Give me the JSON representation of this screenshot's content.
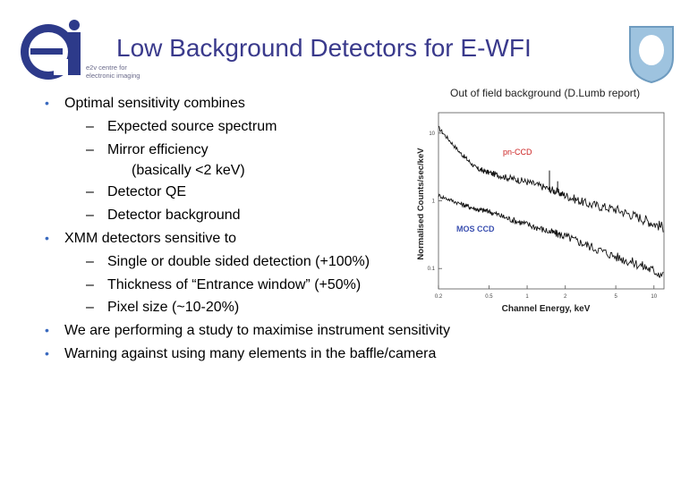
{
  "title": "Low Background Detectors for E-WFI",
  "logo": {
    "mark": "ei",
    "text_line1": "e2v centre for",
    "text_line2": "electronic imaging"
  },
  "bullets": [
    {
      "level": 1,
      "text": "Optimal sensitivity combines"
    },
    {
      "level": 2,
      "text": "Expected source spectrum"
    },
    {
      "level": 2,
      "text": "Mirror efficiency"
    },
    {
      "level": 3,
      "text": "(basically <2 keV)"
    },
    {
      "level": 2,
      "text": "Detector QE"
    },
    {
      "level": 2,
      "text": "Detector background"
    },
    {
      "level": 1,
      "text": "XMM detectors sensitive to"
    },
    {
      "level": 2,
      "text": "Single or double sided detection (+100%)"
    },
    {
      "level": 2,
      "text": "Thickness of “Entrance window” (+50%)"
    },
    {
      "level": 2,
      "text": "Pixel size (~10-20%)"
    },
    {
      "level": 1,
      "text": "We are performing a study to maximise instrument sensitivity"
    },
    {
      "level": 1,
      "text": "Warning against using many elements in the baffle/camera"
    }
  ],
  "markers": {
    "level1": "•",
    "level2": "–"
  },
  "figure": {
    "caption": "Out of field background (D.Lumb report)",
    "xlabel": "Channel Energy, keV",
    "ylabel": "Normalised Counts/sec/keV",
    "xticks": [
      "0.2",
      "0.5",
      "1",
      "2",
      "5",
      "10"
    ],
    "yticks": [
      "10",
      "1",
      "0.1"
    ],
    "series_labels": [
      "pn-CCD",
      "MOS CCD"
    ],
    "colors": {
      "pn": "#cc2222",
      "mos": "#3a4fb0",
      "title": "#3a3a8c",
      "bullet": "#3a6abf"
    }
  },
  "chart_data": {
    "type": "line",
    "xlabel": "Channel Energy, keV",
    "ylabel": "Normalised Counts/sec/keV",
    "xscale": "log",
    "yscale": "log",
    "xlim": [
      0.2,
      12
    ],
    "ylim": [
      0.05,
      20
    ],
    "series": [
      {
        "name": "pn-CCD",
        "x": [
          0.2,
          0.3,
          0.4,
          0.5,
          0.7,
          1.0,
          1.5,
          2.0,
          3.0,
          5.0,
          8.0,
          12.0
        ],
        "y": [
          12,
          5,
          3,
          2.6,
          2.2,
          1.9,
          1.5,
          1.2,
          0.9,
          0.75,
          0.55,
          0.4
        ]
      },
      {
        "name": "MOS CCD",
        "x": [
          0.2,
          0.3,
          0.4,
          0.5,
          0.7,
          1.0,
          1.5,
          2.0,
          3.0,
          5.0,
          8.0,
          12.0
        ],
        "y": [
          1.2,
          0.9,
          0.75,
          0.7,
          0.55,
          0.45,
          0.35,
          0.3,
          0.22,
          0.15,
          0.11,
          0.08
        ]
      }
    ]
  }
}
